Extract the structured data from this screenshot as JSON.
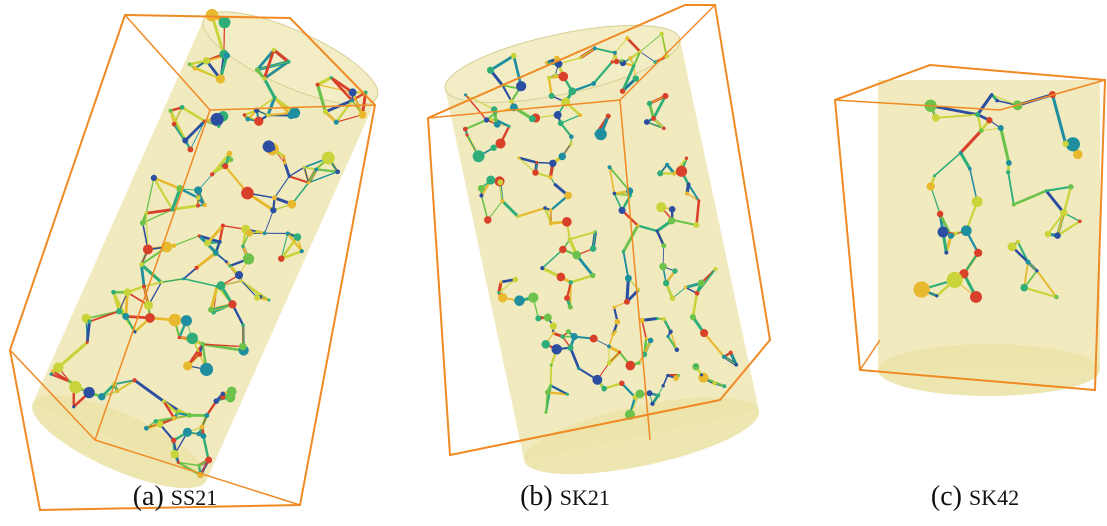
{
  "panels": [
    {
      "label": "(a)",
      "name": "SS21"
    },
    {
      "label": "(b)",
      "name": "SK21"
    },
    {
      "label": "(c)",
      "name": "SK42"
    }
  ]
}
